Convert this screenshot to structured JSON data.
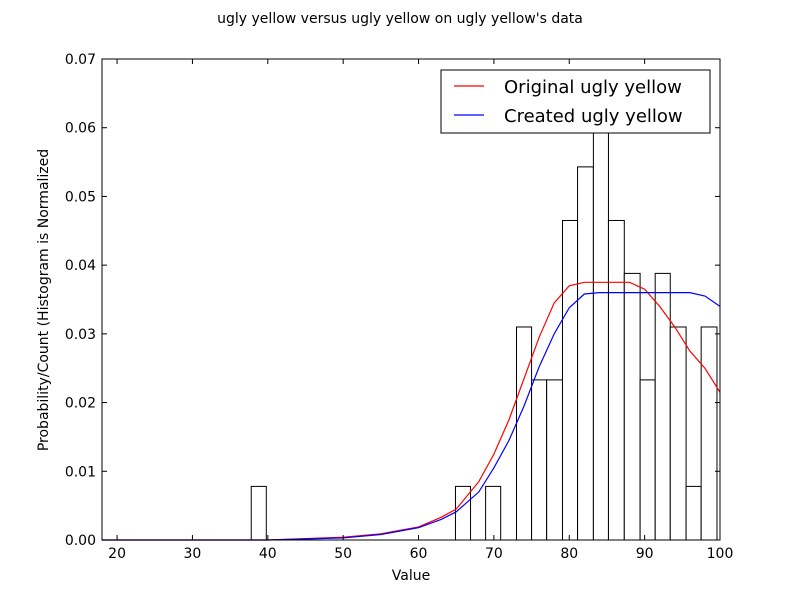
{
  "chart_data": {
    "type": "histogram+line",
    "title": "ugly yellow versus ugly yellow on ugly yellow's data",
    "xlabel": "Value",
    "ylabel": "Probability/Count (Histogram is Normalized",
    "xlim": [
      18,
      100
    ],
    "ylim": [
      0,
      0.07
    ],
    "xticks": [
      20,
      30,
      40,
      50,
      60,
      70,
      80,
      90,
      100
    ],
    "yticks": [
      "0.00",
      "0.01",
      "0.02",
      "0.03",
      "0.04",
      "0.05",
      "0.06",
      "0.07"
    ],
    "grid": false,
    "legend_position": "top-right",
    "histogram": {
      "bins": [
        {
          "x0": 37.8,
          "x1": 39.8,
          "y": 0.0078
        },
        {
          "x0": 64.9,
          "x1": 66.9,
          "y": 0.0078
        },
        {
          "x0": 68.9,
          "x1": 70.9,
          "y": 0.0078
        },
        {
          "x0": 73.0,
          "x1": 75.0,
          "y": 0.031
        },
        {
          "x0": 75.0,
          "x1": 77.0,
          "y": 0.0233
        },
        {
          "x0": 77.0,
          "x1": 79.1,
          "y": 0.0233
        },
        {
          "x0": 79.1,
          "x1": 81.1,
          "y": 0.0465
        },
        {
          "x0": 81.1,
          "x1": 83.2,
          "y": 0.0543
        },
        {
          "x0": 83.2,
          "x1": 85.2,
          "y": 0.062
        },
        {
          "x0": 85.2,
          "x1": 87.3,
          "y": 0.0465
        },
        {
          "x0": 87.3,
          "x1": 89.4,
          "y": 0.0388
        },
        {
          "x0": 89.4,
          "x1": 91.4,
          "y": 0.0233
        },
        {
          "x0": 91.4,
          "x1": 93.4,
          "y": 0.0388
        },
        {
          "x0": 93.4,
          "x1": 95.5,
          "y": 0.031
        },
        {
          "x0": 95.5,
          "x1": 97.5,
          "y": 0.0078
        },
        {
          "x0": 97.5,
          "x1": 99.6,
          "y": 0.031
        }
      ]
    },
    "series": [
      {
        "name": "Original ugly yellow",
        "color": "#ff0000",
        "x": [
          18,
          40,
          50,
          55,
          60,
          63,
          65,
          68,
          70,
          72,
          74,
          76,
          78,
          80,
          82,
          84,
          86,
          88,
          90,
          92,
          94,
          96,
          98,
          100
        ],
        "y": [
          0,
          0,
          0.0004,
          0.0009,
          0.0019,
          0.0033,
          0.0045,
          0.0085,
          0.0125,
          0.0175,
          0.0235,
          0.0295,
          0.0345,
          0.037,
          0.0375,
          0.0375,
          0.0375,
          0.0375,
          0.0365,
          0.034,
          0.031,
          0.0275,
          0.025,
          0.0215
        ]
      },
      {
        "name": "Created ugly yellow",
        "color": "#0000ff",
        "x": [
          18,
          40,
          50,
          55,
          60,
          63,
          65,
          68,
          70,
          72,
          74,
          76,
          78,
          80,
          82,
          84,
          86,
          88,
          90,
          92,
          94,
          96,
          98,
          100
        ],
        "y": [
          0,
          0,
          0.0003,
          0.0008,
          0.0018,
          0.003,
          0.0041,
          0.007,
          0.0105,
          0.0145,
          0.0195,
          0.0252,
          0.03,
          0.0338,
          0.0358,
          0.036,
          0.036,
          0.036,
          0.036,
          0.036,
          0.036,
          0.036,
          0.0355,
          0.034
        ]
      }
    ]
  }
}
